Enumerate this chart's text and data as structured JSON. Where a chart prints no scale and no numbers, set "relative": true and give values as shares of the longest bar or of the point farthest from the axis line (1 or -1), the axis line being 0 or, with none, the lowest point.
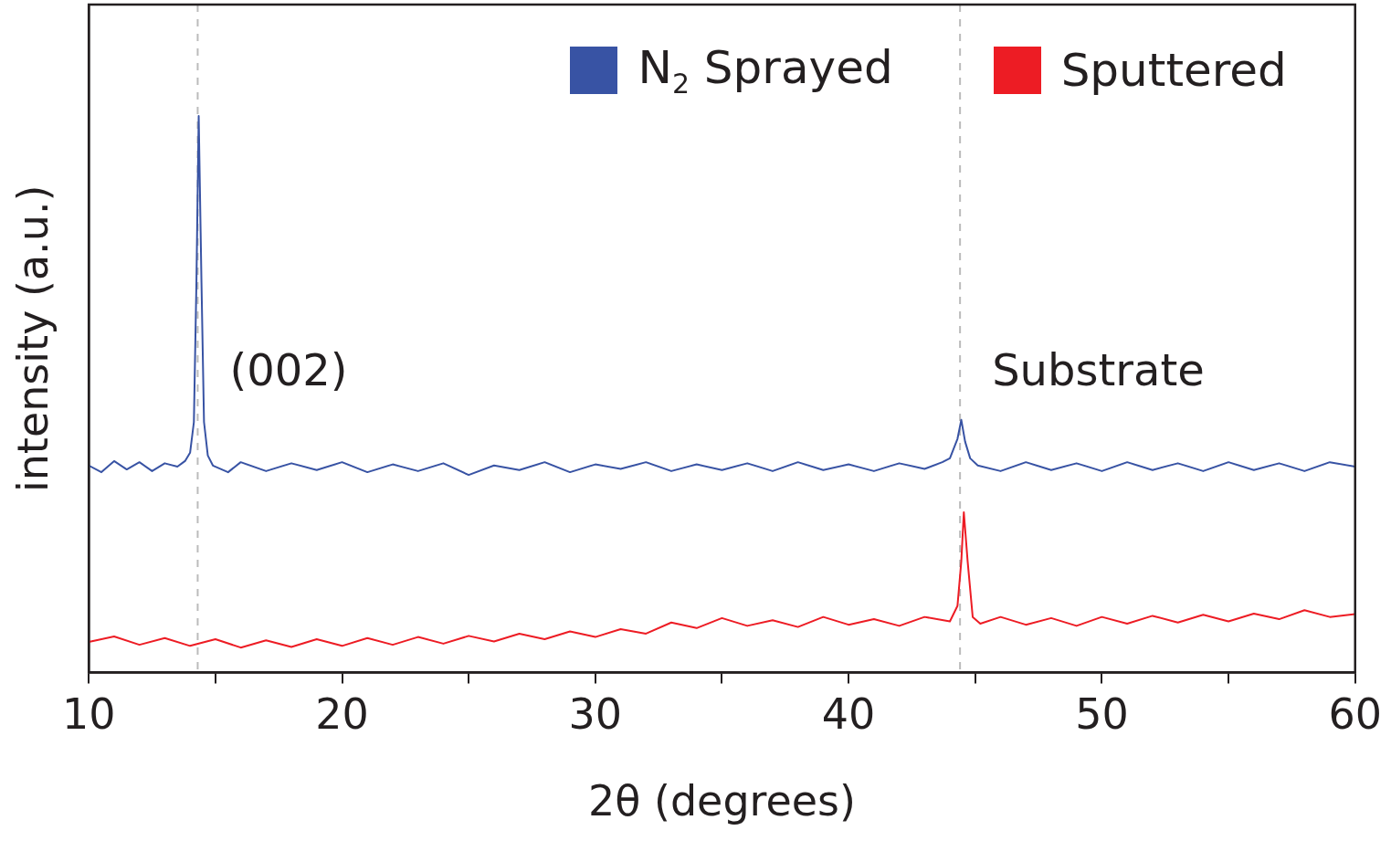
{
  "chart_data": {
    "type": "line",
    "relative": true,
    "xlabel": "2θ (degrees)",
    "ylabel": "intensity (a.u.)",
    "xlim": [
      10,
      60
    ],
    "xticks": [
      10,
      {
        "value": 15,
        "label": null
      },
      20,
      {
        "value": 25,
        "label": null
      },
      30,
      {
        "value": 35,
        "label": null
      },
      40,
      {
        "value": 45,
        "label": null
      },
      50,
      {
        "value": 55,
        "label": null
      },
      60
    ],
    "legend": "top right",
    "grid": false,
    "marker": "none",
    "line_style": "solid",
    "series": [
      {
        "name": "N$_{2}$ Sprayed",
        "color": "#3853a4",
        "x": [
          10,
          10.5,
          11,
          11.5,
          12,
          12.5,
          13,
          13.5,
          13.8,
          14.0,
          14.15,
          14.25,
          14.34,
          14.45,
          14.55,
          14.7,
          14.9,
          15.5,
          16,
          17,
          18,
          19,
          20,
          21,
          22,
          23,
          24,
          25,
          26,
          27,
          28,
          29,
          30,
          31,
          32,
          33,
          34,
          35,
          36,
          37,
          38,
          39,
          40,
          41,
          42,
          43,
          43.7,
          44.0,
          44.3,
          44.45,
          44.6,
          44.8,
          45.1,
          46,
          47,
          48,
          49,
          50,
          51,
          52,
          53,
          54,
          55,
          56,
          57,
          58,
          59,
          60
        ],
        "values": [
          0.372,
          0.36,
          0.38,
          0.365,
          0.378,
          0.362,
          0.376,
          0.37,
          0.38,
          0.395,
          0.45,
          0.7,
          1,
          0.7,
          0.45,
          0.39,
          0.372,
          0.36,
          0.378,
          0.362,
          0.376,
          0.364,
          0.378,
          0.36,
          0.374,
          0.362,
          0.376,
          0.355,
          0.372,
          0.364,
          0.378,
          0.36,
          0.374,
          0.366,
          0.378,
          0.362,
          0.374,
          0.364,
          0.376,
          0.362,
          0.378,
          0.364,
          0.374,
          0.362,
          0.376,
          0.366,
          0.378,
          0.385,
          0.42,
          0.454,
          0.415,
          0.385,
          0.372,
          0.362,
          0.378,
          0.364,
          0.376,
          0.362,
          0.378,
          0.364,
          0.376,
          0.362,
          0.378,
          0.364,
          0.376,
          0.362,
          0.378,
          0.37
        ]
      },
      {
        "name": "Sputtered",
        "color": "#ed1c24",
        "x": [
          10,
          11,
          12,
          13,
          14,
          15,
          16,
          17,
          18,
          19,
          20,
          21,
          22,
          23,
          24,
          25,
          26,
          27,
          28,
          29,
          30,
          31,
          32,
          33,
          34,
          35,
          36,
          37,
          38,
          39,
          40,
          41,
          42,
          43,
          44,
          44.3,
          44.45,
          44.55,
          44.7,
          44.9,
          45.2,
          46,
          47,
          48,
          49,
          50,
          51,
          52,
          53,
          54,
          55,
          56,
          57,
          58,
          59,
          60
        ],
        "values": [
          0.055,
          0.065,
          0.05,
          0.062,
          0.048,
          0.06,
          0.045,
          0.058,
          0.046,
          0.06,
          0.048,
          0.062,
          0.05,
          0.064,
          0.052,
          0.066,
          0.056,
          0.07,
          0.06,
          0.074,
          0.064,
          0.078,
          0.07,
          0.09,
          0.08,
          0.098,
          0.084,
          0.094,
          0.082,
          0.1,
          0.086,
          0.096,
          0.084,
          0.1,
          0.092,
          0.12,
          0.2,
          0.288,
          0.2,
          0.1,
          0.088,
          0.1,
          0.086,
          0.098,
          0.084,
          0.1,
          0.088,
          0.102,
          0.09,
          0.104,
          0.092,
          0.106,
          0.096,
          0.112,
          0.1,
          0.105
        ]
      }
    ],
    "ref_lines": [
      {
        "axis": "x",
        "value": 14.3,
        "color": "#bbbbbb",
        "line_style": "dashed"
      },
      {
        "axis": "x",
        "value": 44.4,
        "color": "#bbbbbb",
        "line_style": "dashed"
      }
    ],
    "annotations": [
      "(002)",
      "Substrate"
    ]
  }
}
